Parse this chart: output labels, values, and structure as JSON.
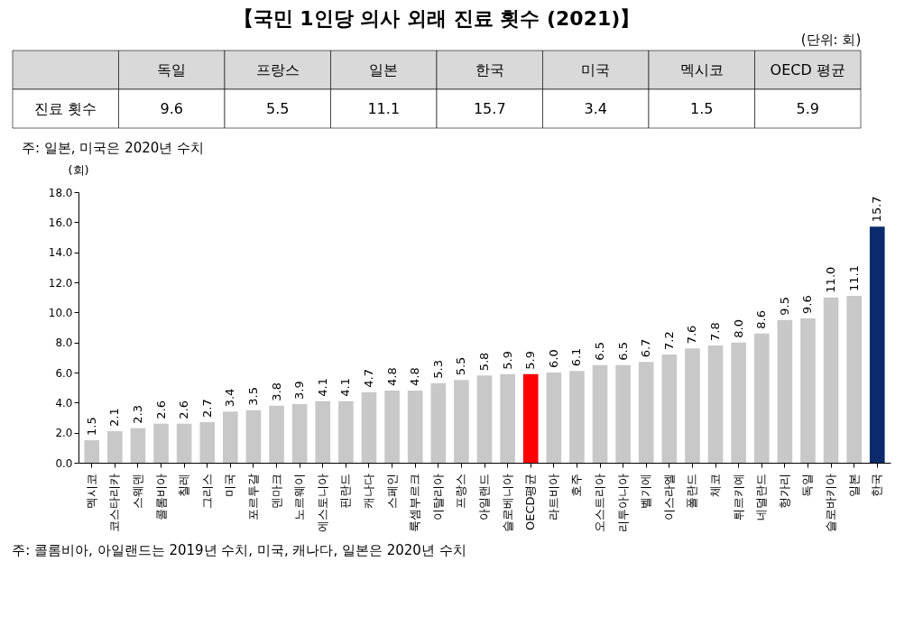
{
  "chart_data": [
    {
      "type": "other",
      "title": "【국민 1인당 의사 외래 진료 횟수 (2021)】",
      "subtitle": "(단위: 회)",
      "ylabel": "진료 횟수",
      "categories": [
        "독일",
        "프랑스",
        "일본",
        "한국",
        "미국",
        "멕시코",
        "OECD 평균"
      ],
      "values": [
        9.6,
        5.5,
        11.1,
        15.7,
        3.4,
        1.5,
        5.9
      ],
      "value_labels": [
        "9.6",
        "5.5",
        "11.1",
        "15.7",
        "3.4",
        "1.5",
        "5.9"
      ],
      "annotations": [
        "주: 일본, 미국은 2020년 수치"
      ]
    },
    {
      "type": "bar",
      "ylabel": "(회)",
      "categories": [
        "멕시코",
        "코스타리카",
        "스웨덴",
        "콜롬비아",
        "칠레",
        "그리스",
        "미국",
        "포르투갈",
        "덴마크",
        "노르웨이",
        "에스토니아",
        "핀란드",
        "캐나다",
        "스페인",
        "룩셈부르크",
        "이탈리아",
        "프랑스",
        "아일랜드",
        "슬로베니아",
        "OECD평균",
        "라트비아",
        "호주",
        "오스트리아",
        "리투아니아",
        "벨기에",
        "이스라엘",
        "폴란드",
        "체코",
        "튀르키예",
        "네덜란드",
        "헝가리",
        "독일",
        "슬로바키아",
        "일본",
        "한국"
      ],
      "values": [
        1.5,
        2.1,
        2.3,
        2.6,
        2.6,
        2.7,
        3.4,
        3.5,
        3.8,
        3.9,
        4.1,
        4.1,
        4.7,
        4.8,
        4.8,
        5.3,
        5.5,
        5.8,
        5.9,
        5.9,
        6.0,
        6.1,
        6.5,
        6.5,
        6.7,
        7.2,
        7.6,
        7.8,
        8.0,
        8.6,
        9.5,
        9.6,
        11.0,
        11.1,
        15.7
      ],
      "colors": [
        "#c8c8c8",
        "#c8c8c8",
        "#c8c8c8",
        "#c8c8c8",
        "#c8c8c8",
        "#c8c8c8",
        "#c8c8c8",
        "#c8c8c8",
        "#c8c8c8",
        "#c8c8c8",
        "#c8c8c8",
        "#c8c8c8",
        "#c8c8c8",
        "#c8c8c8",
        "#c8c8c8",
        "#c8c8c8",
        "#c8c8c8",
        "#c8c8c8",
        "#c8c8c8",
        "#ff0000",
        "#c8c8c8",
        "#c8c8c8",
        "#c8c8c8",
        "#c8c8c8",
        "#c8c8c8",
        "#c8c8c8",
        "#c8c8c8",
        "#c8c8c8",
        "#c8c8c8",
        "#c8c8c8",
        "#c8c8c8",
        "#c8c8c8",
        "#c8c8c8",
        "#c8c8c8",
        "#0a2a6b"
      ],
      "ylim": [
        0,
        18
      ],
      "yticks": [
        {
          "value": 0,
          "label": "0.0"
        },
        {
          "value": 2,
          "label": "2.0"
        },
        {
          "value": 4,
          "label": "4.0"
        },
        {
          "value": 6,
          "label": "6.0"
        },
        {
          "value": 8,
          "label": "8.0"
        },
        {
          "value": 10,
          "label": "10.0"
        },
        {
          "value": 12,
          "label": "12.0"
        },
        {
          "value": 14,
          "label": "14.0"
        },
        {
          "value": 16,
          "label": "16.0"
        },
        {
          "value": 18,
          "label": "18.0"
        }
      ],
      "value_labels": [
        "1.5",
        "2.1",
        "2.3",
        "2.6",
        "2.6",
        "2.7",
        "3.4",
        "3.5",
        "3.8",
        "3.9",
        "4.1",
        "4.1",
        "4.7",
        "4.8",
        "4.8",
        "5.3",
        "5.5",
        "5.8",
        "5.9",
        "5.9",
        "6.0",
        "6.1",
        "6.5",
        "6.5",
        "6.7",
        "7.2",
        "7.6",
        "7.8",
        "8.0",
        "8.6",
        "9.5",
        "9.6",
        "11.0",
        "11.1",
        "15.7"
      ],
      "grid": false,
      "annotations": [
        "주: 콜롬비아, 아일랜드는 2019년 수치, 미국, 캐나다, 일본은 2020년 수치"
      ]
    }
  ]
}
